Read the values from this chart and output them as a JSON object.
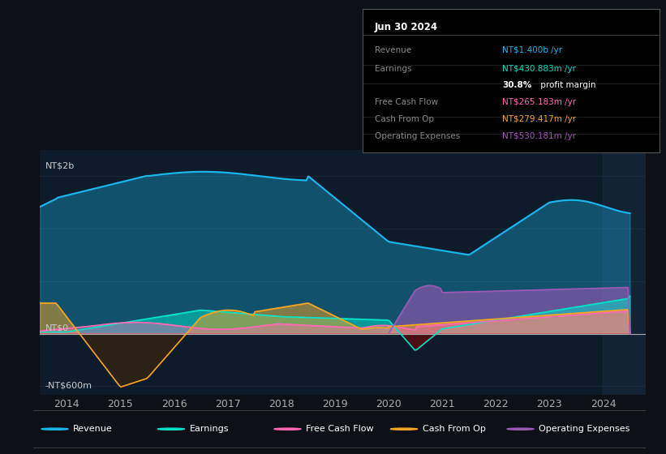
{
  "bg_color": "#0d1117",
  "plot_bg_color": "#0d1b2a",
  "colors": {
    "revenue": "#1ab7ea",
    "earnings": "#00e5c9",
    "free_cash_flow": "#ff69b4",
    "cash_from_op": "#f5a623",
    "operating_expenses": "#9b59b6"
  },
  "info_box": {
    "title": "Jun 30 2024",
    "rows": [
      {
        "label": "Revenue",
        "value": "NT$1.400b /yr",
        "color": "#1ab7ea"
      },
      {
        "label": "Earnings",
        "value": "NT$430.883m /yr",
        "color": "#00e5c9"
      },
      {
        "label": "",
        "value": "30.8% profit margin",
        "color": "#ffffff",
        "bold_prefix": "30.8%",
        "suffix": " profit margin"
      },
      {
        "label": "Free Cash Flow",
        "value": "NT$265.183m /yr",
        "color": "#ff69b4"
      },
      {
        "label": "Cash From Op",
        "value": "NT$279.417m /yr",
        "color": "#f5a623"
      },
      {
        "label": "Operating Expenses",
        "value": "NT$530.181m /yr",
        "color": "#9b59b6"
      }
    ]
  },
  "legend_items": [
    {
      "color": "#1ab7ea",
      "label": "Revenue"
    },
    {
      "color": "#00e5c9",
      "label": "Earnings"
    },
    {
      "color": "#ff69b4",
      "label": "Free Cash Flow"
    },
    {
      "color": "#f5a623",
      "label": "Cash From Op"
    },
    {
      "color": "#9b59b6",
      "label": "Operating Expenses"
    }
  ],
  "xlim": [
    2013.5,
    2024.8
  ],
  "ylim": [
    -700,
    2100
  ],
  "xticks": [
    2014,
    2015,
    2016,
    2017,
    2018,
    2019,
    2020,
    2021,
    2022,
    2023,
    2024
  ],
  "ylabel_top": "NT$2b",
  "ylabel_zero": "NT$0",
  "ylabel_bottom": "-NT$600m",
  "hlines": [
    1800,
    1200,
    600,
    0,
    -600
  ],
  "vspan_start": 2024.0
}
